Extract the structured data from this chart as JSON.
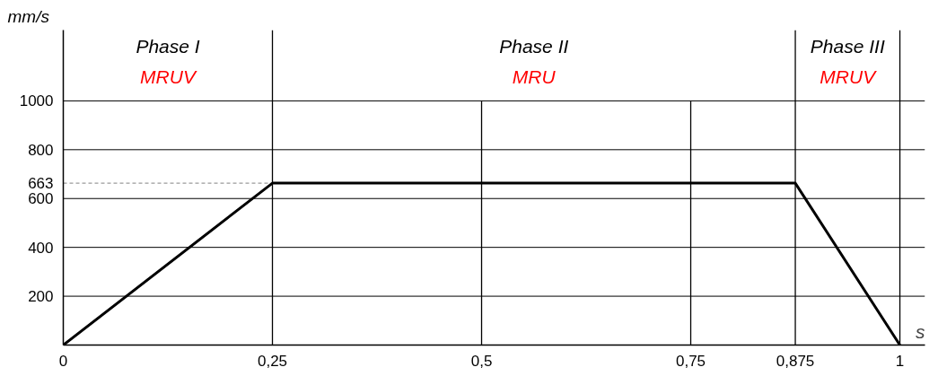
{
  "chart_data": {
    "type": "line",
    "xlabel": "s",
    "ylabel": "mm/s",
    "x": [
      0,
      0.25,
      0.875,
      1
    ],
    "series": [
      {
        "color": "#000000",
        "values": [
          0,
          663,
          663,
          0
        ]
      }
    ],
    "xlim": [
      0,
      1.03
    ],
    "ylim": [
      0,
      1290
    ],
    "xticks": [
      {
        "value": 0,
        "label": "0"
      },
      {
        "value": 0.25,
        "label": "0,25"
      },
      {
        "value": 0.5,
        "label": "0,5"
      },
      {
        "value": 0.75,
        "label": "0,75"
      },
      {
        "value": 0.875,
        "label": "0,875"
      },
      {
        "value": 1,
        "label": "1"
      }
    ],
    "yticks": [
      200,
      400,
      600,
      663,
      800,
      1000
    ],
    "grid": "y",
    "ref_lines": [
      {
        "axis": "y",
        "value": 663,
        "line_style": "dashed",
        "color": "#808080"
      },
      {
        "axis": "x",
        "value": 0.25,
        "color": "#000000"
      },
      {
        "axis": "x",
        "value": 0.5,
        "color": "#000000",
        "line_style": "solid"
      },
      {
        "axis": "x",
        "value": 0.75,
        "color": "#000000",
        "line_style": "solid"
      },
      {
        "axis": "x",
        "value": 0.875,
        "color": "#000000"
      },
      {
        "axis": "x",
        "value": 1,
        "color": "#000000"
      }
    ],
    "annotations": [
      "Phase I",
      "MRUV",
      "Phase II",
      "MRU",
      "Phase III",
      "MRUV"
    ]
  }
}
